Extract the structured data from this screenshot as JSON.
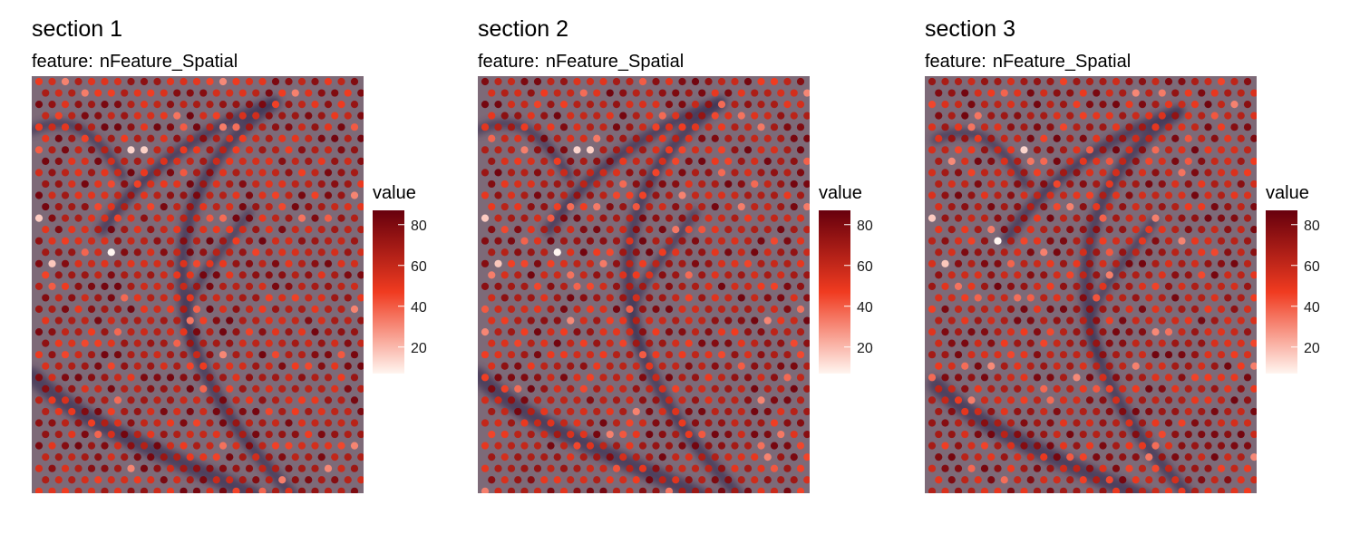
{
  "panels": [
    {
      "title": "section 1",
      "subtitle_prefix": "feature:",
      "subtitle": "nFeature_Spatial",
      "legend_title": "value"
    },
    {
      "title": "section 2",
      "subtitle_prefix": "feature:",
      "subtitle": "nFeature_Spatial",
      "legend_title": "value"
    },
    {
      "title": "section 3",
      "subtitle_prefix": "feature:",
      "subtitle": "nFeature_Spatial",
      "legend_title": "value"
    }
  ],
  "chart_data": [
    {
      "type": "scatter",
      "title": "section 1",
      "subtitle": "feature:  nFeature_Spatial",
      "color_variable": "value",
      "color_range": [
        7,
        87
      ],
      "colorbar_ticks": [
        20,
        40,
        60,
        80
      ],
      "colors": {
        "low": "#fff5f0",
        "mid": "#f03b20",
        "high": "#67000d",
        "background_tissue": "#7d6a78",
        "dark_band": "#3c3354"
      },
      "spot_grid": {
        "rows": 37,
        "cols_per_row": 26,
        "layout": "hexagonal offset"
      },
      "highlighted_spots": [
        {
          "label": "minimum",
          "value": 7,
          "row": 15,
          "col": 5
        },
        {
          "label": "low",
          "value": 14,
          "row": 6,
          "col": 7
        },
        {
          "label": "low",
          "value": 15,
          "row": 6,
          "col": 8
        },
        {
          "label": "low",
          "value": 16,
          "row": 12,
          "col": 0
        },
        {
          "label": "low",
          "value": 17,
          "row": 16,
          "col": 1
        }
      ],
      "legend_position": "right"
    },
    {
      "type": "scatter",
      "title": "section 2",
      "subtitle": "feature:  nFeature_Spatial",
      "color_variable": "value",
      "color_range": [
        7,
        87
      ],
      "colorbar_ticks": [
        20,
        40,
        60,
        80
      ],
      "colors": {
        "low": "#fff5f0",
        "mid": "#f03b20",
        "high": "#67000d",
        "background_tissue": "#7d6a78",
        "dark_band": "#3c3354"
      },
      "spot_grid": {
        "rows": 37,
        "cols_per_row": 26,
        "layout": "hexagonal offset"
      },
      "highlighted_spots": [
        {
          "label": "minimum",
          "value": 7,
          "row": 15,
          "col": 5
        },
        {
          "label": "low",
          "value": 14,
          "row": 6,
          "col": 7
        },
        {
          "label": "low",
          "value": 15,
          "row": 6,
          "col": 8
        },
        {
          "label": "low",
          "value": 16,
          "row": 12,
          "col": 0
        },
        {
          "label": "low",
          "value": 17,
          "row": 16,
          "col": 1
        }
      ],
      "legend_position": "right"
    },
    {
      "type": "scatter",
      "title": "section 3",
      "subtitle": "feature:  nFeature_Spatial",
      "color_variable": "value",
      "color_range": [
        7,
        87
      ],
      "colorbar_ticks": [
        20,
        40,
        60,
        80
      ],
      "colors": {
        "low": "#fff5f0",
        "mid": "#f03b20",
        "high": "#67000d",
        "background_tissue": "#7d6a78",
        "dark_band": "#3c3354"
      },
      "spot_grid": {
        "rows": 37,
        "cols_per_row": 26,
        "layout": "hexagonal offset"
      },
      "highlighted_spots": [
        {
          "label": "minimum",
          "value": 7,
          "row": 14,
          "col": 5
        },
        {
          "label": "low",
          "value": 14,
          "row": 6,
          "col": 7
        },
        {
          "label": "low",
          "value": 16,
          "row": 12,
          "col": 0
        },
        {
          "label": "low",
          "value": 17,
          "row": 16,
          "col": 1
        }
      ],
      "legend_position": "right"
    }
  ]
}
